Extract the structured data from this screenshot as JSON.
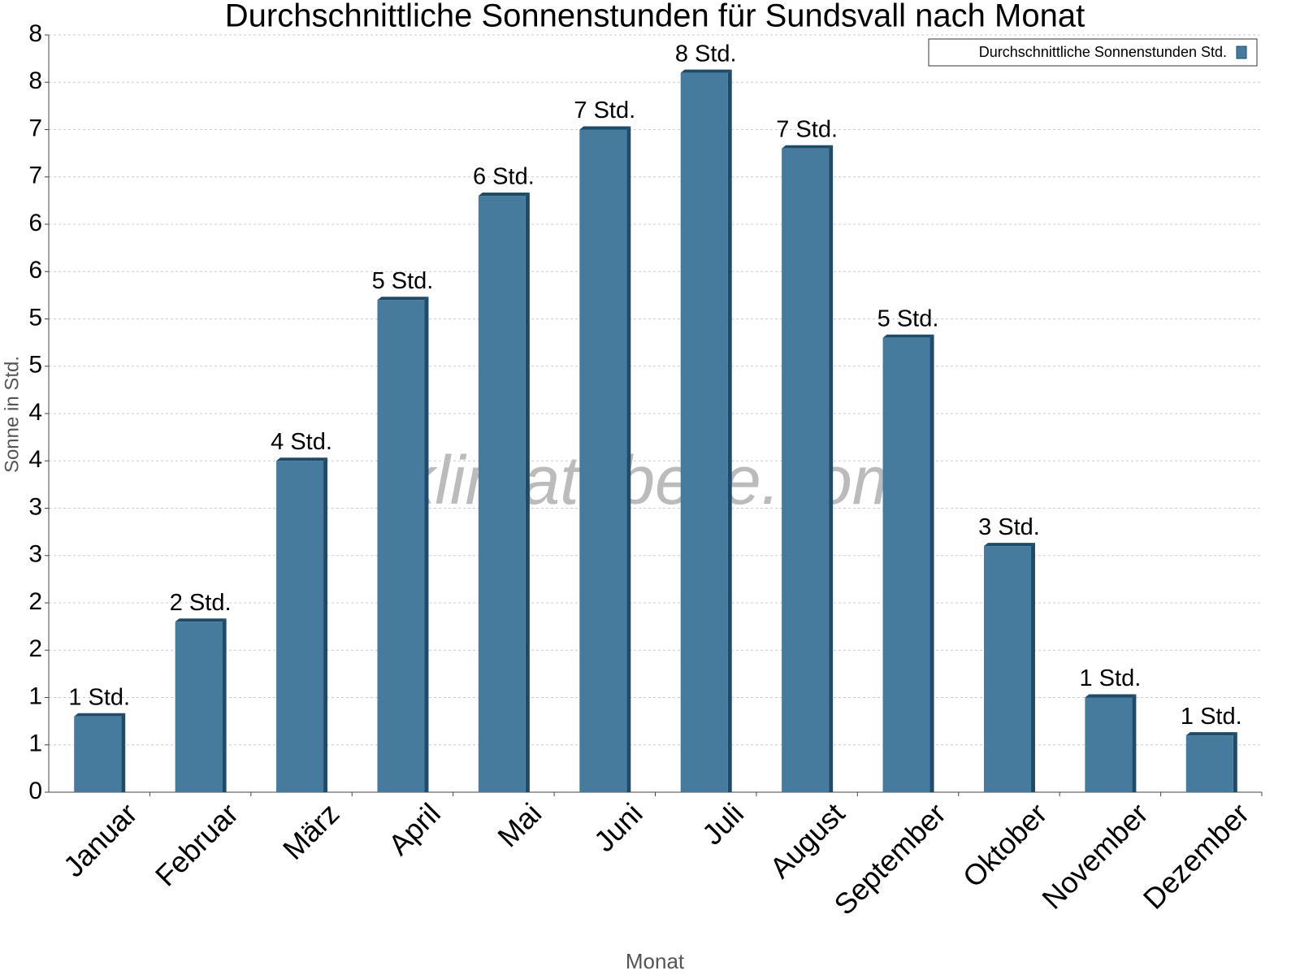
{
  "chart_data": {
    "type": "bar",
    "title": "Durchschnittliche Sonnenstunden für Sundsvall nach Monat",
    "x_label": "Monat",
    "y_label": "Sonne in Std.",
    "watermark": "klimatabelle.com",
    "categories": [
      "Januar",
      "Februar",
      "März",
      "April",
      "Mai",
      "Juni",
      "Juli",
      "August",
      "September",
      "Oktober",
      "November",
      "Dezember"
    ],
    "series": [
      {
        "name": "Durchschnittliche Sonnenstunden Std.",
        "color": "#467b9e",
        "values": [
          0.8,
          1.8,
          3.5,
          5.2,
          6.3,
          7.0,
          7.6,
          6.8,
          4.8,
          2.6,
          1.0,
          0.6
        ],
        "value_labels": [
          "1 Std.",
          "2 Std.",
          "4 Std.",
          "5 Std.",
          "6 Std.",
          "7 Std.",
          "8 Std.",
          "7 Std.",
          "5 Std.",
          "3 Std.",
          "1 Std.",
          "1 Std."
        ]
      }
    ],
    "ylim": [
      0,
      8
    ],
    "yticks": [
      0,
      {
        "value": 0.5,
        "label": "1"
      },
      1,
      {
        "value": 1.5,
        "label": "2"
      },
      2,
      {
        "value": 2.5,
        "label": "3"
      },
      3,
      {
        "value": 3.5,
        "label": "4"
      },
      4,
      {
        "value": 4.5,
        "label": "5"
      },
      5,
      {
        "value": 5.5,
        "label": "6"
      },
      6,
      {
        "value": 6.5,
        "label": "7"
      },
      7,
      {
        "value": 7.5,
        "label": "8"
      },
      8
    ],
    "grid": true,
    "legend": "top-right"
  }
}
